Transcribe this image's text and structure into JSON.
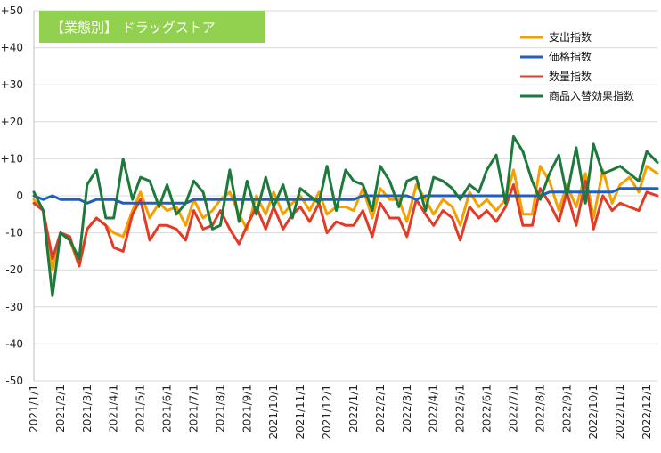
{
  "chart_data": {
    "type": "line",
    "title": "【業態別】 ドラッグストア",
    "xlabel": "",
    "ylabel": "",
    "ylim": [
      -50,
      50
    ],
    "y_ticks": [
      "-50",
      "-40",
      "-30",
      "-20",
      "-10",
      "0",
      "+10",
      "+20",
      "+30",
      "+40",
      "+50"
    ],
    "y_tick_values": [
      -50,
      -40,
      -30,
      -20,
      -10,
      0,
      10,
      20,
      30,
      40,
      50
    ],
    "x_ticks": [
      "2021/1/1",
      "2021/2/1",
      "2021/3/1",
      "2021/4/1",
      "2021/5/1",
      "2021/6/1",
      "2021/7/1",
      "2021/8/1",
      "2021/9/1",
      "2021/10/1",
      "2021/11/1",
      "2021/12/1",
      "2022/1/1",
      "2022/2/1",
      "2022/3/1",
      "2022/4/1",
      "2022/5/1",
      "2022/6/1",
      "2022/7/1",
      "2022/8/1",
      "2022/9/1",
      "2022/10/1",
      "2022/11/1",
      "2022/12/1"
    ],
    "x_range": [
      0,
      23.4
    ],
    "grid": true,
    "legend_position": "top-right",
    "series": [
      {
        "name": "支出指数",
        "color": "#F5A000",
        "x": [
          0,
          0.35,
          0.7,
          1.0,
          1.35,
          1.7,
          2.0,
          2.35,
          2.7,
          3.0,
          3.35,
          3.7,
          4.0,
          4.35,
          4.7,
          5.0,
          5.35,
          5.7,
          6.0,
          6.35,
          6.7,
          7.0,
          7.35,
          7.7,
          8.0,
          8.35,
          8.7,
          9.0,
          9.35,
          9.7,
          10.0,
          10.35,
          10.7,
          11.0,
          11.35,
          11.7,
          12.0,
          12.35,
          12.7,
          13.0,
          13.35,
          13.7,
          14.0,
          14.35,
          14.7,
          15.0,
          15.35,
          15.7,
          16.0,
          16.35,
          16.7,
          17.0,
          17.35,
          17.7,
          18.0,
          18.35,
          18.7,
          19.0,
          19.35,
          19.7,
          20.0,
          20.35,
          20.7,
          21.0,
          21.35,
          21.7,
          22.0,
          22.35,
          22.7,
          23.0,
          23.4
        ],
        "values": [
          -1,
          -4,
          -20,
          -10,
          -12,
          -19,
          -9,
          -6,
          -8,
          -10,
          -11,
          -4,
          1,
          -6,
          -2,
          -4,
          -3,
          -8,
          -1,
          -6,
          -4,
          -1,
          1,
          -5,
          -9,
          0,
          -5,
          1,
          -5,
          -2,
          0,
          -4,
          1,
          -5,
          -3,
          -3,
          -4,
          2,
          -6,
          2,
          -1,
          -1,
          -7,
          3,
          -1,
          -5,
          -1,
          -3,
          -8,
          1,
          -3,
          -1,
          -4,
          -1,
          7,
          -5,
          -5,
          8,
          4,
          -4,
          3,
          -3,
          6,
          -6,
          7,
          -2,
          3,
          5,
          1,
          8,
          6
        ]
      },
      {
        "name": "価格指数",
        "color": "#1F5FBF",
        "x": [
          0,
          0.35,
          0.7,
          1.0,
          1.35,
          1.7,
          2.0,
          2.35,
          2.7,
          3.0,
          3.35,
          3.7,
          4.0,
          4.35,
          4.7,
          5.0,
          5.35,
          5.7,
          6.0,
          6.35,
          6.7,
          7.0,
          7.35,
          7.7,
          8.0,
          8.35,
          8.7,
          9.0,
          9.35,
          9.7,
          10.0,
          10.35,
          10.7,
          11.0,
          11.35,
          11.7,
          12.0,
          12.35,
          12.7,
          13.0,
          13.35,
          13.7,
          14.0,
          14.35,
          14.7,
          15.0,
          15.35,
          15.7,
          16.0,
          16.35,
          16.7,
          17.0,
          17.35,
          17.7,
          18.0,
          18.35,
          18.7,
          19.0,
          19.35,
          19.7,
          20.0,
          20.35,
          20.7,
          21.0,
          21.35,
          21.7,
          22.0,
          22.35,
          22.7,
          23.0,
          23.4
        ],
        "values": [
          0,
          -1,
          0,
          -1,
          -1,
          -1,
          -2,
          -1,
          -1,
          -1,
          -2,
          -2,
          -2,
          -2,
          -2,
          -2,
          -2,
          -2,
          -1,
          -1,
          -1,
          -1,
          -1,
          -1,
          -1,
          -1,
          -1,
          -1,
          -1,
          -1,
          -1,
          -1,
          -1,
          -1,
          -1,
          -1,
          -1,
          0,
          0,
          0,
          0,
          0,
          0,
          -1,
          0,
          0,
          0,
          0,
          0,
          0,
          0,
          0,
          0,
          0,
          0,
          0,
          0,
          0,
          1,
          1,
          1,
          1,
          1,
          1,
          1,
          1,
          2,
          2,
          2,
          2,
          2
        ]
      },
      {
        "name": "数量指数",
        "color": "#E03C28",
        "x": [
          0,
          0.35,
          0.7,
          1.0,
          1.35,
          1.7,
          2.0,
          2.35,
          2.7,
          3.0,
          3.35,
          3.7,
          4.0,
          4.35,
          4.7,
          5.0,
          5.35,
          5.7,
          6.0,
          6.35,
          6.7,
          7.0,
          7.35,
          7.7,
          8.0,
          8.35,
          8.7,
          9.0,
          9.35,
          9.7,
          10.0,
          10.35,
          10.7,
          11.0,
          11.35,
          11.7,
          12.0,
          12.35,
          12.7,
          13.0,
          13.35,
          13.7,
          14.0,
          14.35,
          14.7,
          15.0,
          15.35,
          15.7,
          16.0,
          16.35,
          16.7,
          17.0,
          17.35,
          17.7,
          18.0,
          18.35,
          18.7,
          19.0,
          19.35,
          19.7,
          20.0,
          20.35,
          20.7,
          21.0,
          21.35,
          21.7,
          22.0,
          22.35,
          22.7,
          23.0,
          23.4
        ],
        "values": [
          -2,
          -4,
          -17,
          -10,
          -11,
          -19,
          -9,
          -6,
          -8,
          -14,
          -15,
          -5,
          -1,
          -12,
          -8,
          -8,
          -9,
          -12,
          -4,
          -9,
          -8,
          -4,
          -9,
          -13,
          -8,
          -3,
          -9,
          -3,
          -9,
          -5,
          -3,
          -7,
          -2,
          -10,
          -7,
          -8,
          -8,
          -4,
          -11,
          -2,
          -6,
          -6,
          -11,
          -1,
          -5,
          -8,
          -4,
          -6,
          -12,
          -3,
          -6,
          -4,
          -7,
          -3,
          3,
          -8,
          -8,
          2,
          -2,
          -7,
          1,
          -8,
          4,
          -9,
          0,
          -4,
          -2,
          -3,
          -4,
          1,
          0
        ]
      },
      {
        "name": "商品入替効果指数",
        "color": "#1E7A3C",
        "x": [
          0,
          0.35,
          0.7,
          1.0,
          1.35,
          1.7,
          2.0,
          2.35,
          2.7,
          3.0,
          3.35,
          3.7,
          4.0,
          4.35,
          4.7,
          5.0,
          5.35,
          5.7,
          6.0,
          6.35,
          6.7,
          7.0,
          7.35,
          7.7,
          8.0,
          8.35,
          8.7,
          9.0,
          9.35,
          9.7,
          10.0,
          10.35,
          10.7,
          11.0,
          11.35,
          11.7,
          12.0,
          12.35,
          12.7,
          13.0,
          13.35,
          13.7,
          14.0,
          14.35,
          14.7,
          15.0,
          15.35,
          15.7,
          16.0,
          16.35,
          16.7,
          17.0,
          17.35,
          17.7,
          18.0,
          18.35,
          18.7,
          19.0,
          19.35,
          19.7,
          20.0,
          20.35,
          20.7,
          21.0,
          21.35,
          21.7,
          22.0,
          22.35,
          22.7,
          23.0,
          23.4
        ],
        "values": [
          1,
          -4,
          -27,
          -10,
          -12,
          -17,
          3,
          7,
          -6,
          -6,
          10,
          -1,
          5,
          4,
          -3,
          3,
          -5,
          -2,
          4,
          1,
          -9,
          -8,
          7,
          -7,
          4,
          -5,
          5,
          -3,
          3,
          -6,
          2,
          0,
          -2,
          8,
          -4,
          7,
          4,
          3,
          -4,
          8,
          4,
          -3,
          4,
          5,
          -4,
          5,
          4,
          2,
          -1,
          3,
          1,
          7,
          11,
          -2,
          16,
          12,
          4,
          -1,
          6,
          11,
          0,
          13,
          -2,
          14,
          6,
          7,
          8,
          6,
          4,
          12,
          9
        ]
      }
    ]
  }
}
